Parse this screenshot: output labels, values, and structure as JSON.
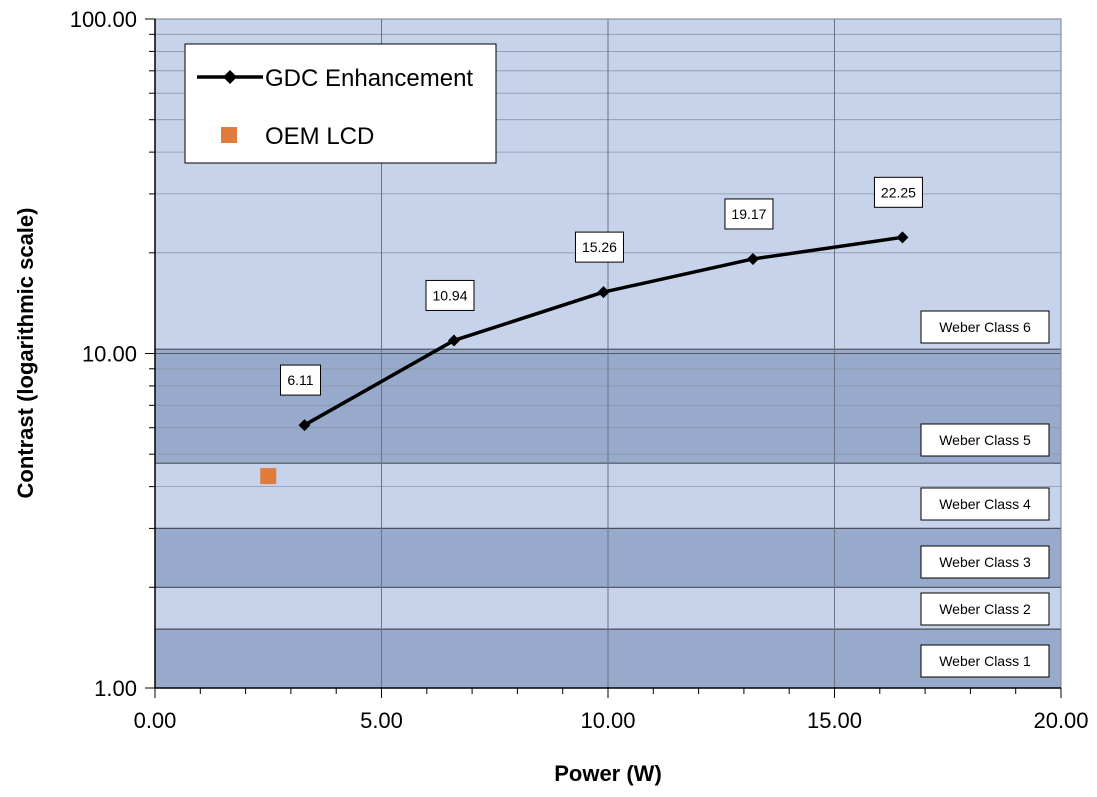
{
  "chart_data": {
    "type": "line",
    "xlabel": "Power (W)",
    "ylabel": "Contrast (logarithmic scale)",
    "xlim": [
      0,
      20
    ],
    "ylim": [
      1,
      100
    ],
    "y_scale": "log",
    "grid": true,
    "legend_position": "top-left",
    "x_ticks": [
      "0.00",
      "5.00",
      "10.00",
      "15.00",
      "20.00"
    ],
    "y_ticks": [
      "1.00",
      "10.00",
      "100.00"
    ],
    "series": [
      {
        "name": "GDC Enhancement",
        "style": "line-diamond",
        "color": "#000000",
        "x": [
          3.3,
          6.6,
          9.9,
          13.2,
          16.5
        ],
        "y": [
          6.11,
          10.94,
          15.26,
          19.17,
          22.25
        ],
        "labels": [
          "6.11",
          "10.94",
          "15.26",
          "19.17",
          "22.25"
        ]
      },
      {
        "name": "OEM LCD",
        "style": "square-marker",
        "color": "#e07b39",
        "x": [
          2.5
        ],
        "y": [
          4.3
        ]
      }
    ],
    "bands": [
      {
        "label": "Weber Class 1",
        "from": 1.0,
        "to": 1.5,
        "shade": "dark"
      },
      {
        "label": "Weber Class 2",
        "from": 1.5,
        "to": 2.0,
        "shade": "light"
      },
      {
        "label": "Weber Class 3",
        "from": 2.0,
        "to": 3.0,
        "shade": "dark"
      },
      {
        "label": "Weber Class 4",
        "from": 3.0,
        "to": 4.7,
        "shade": "light"
      },
      {
        "label": "Weber Class 5",
        "from": 4.7,
        "to": 10.3,
        "shade": "dark"
      },
      {
        "label": "Weber Class 6",
        "from": 10.3,
        "to": 100,
        "shade": "light"
      }
    ],
    "colors": {
      "band_light": "#c6d3ea",
      "band_dark": "#98aacb"
    }
  }
}
